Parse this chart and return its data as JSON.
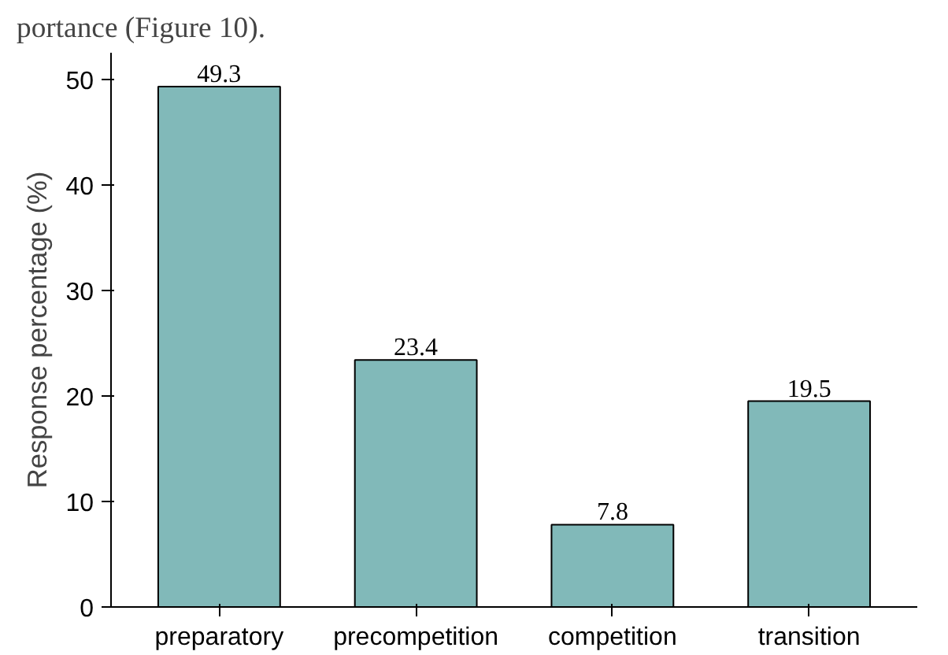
{
  "chart_data": {
    "type": "bar",
    "ylabel": "Response percentage (%)",
    "categories": [
      "preparatory",
      "precompetition",
      "competition",
      "transition"
    ],
    "values": [
      49.3,
      23.4,
      7.8,
      19.5
    ],
    "color": "#1a7f7f",
    "ylim": [
      0,
      52.5
    ],
    "yticks": [
      0,
      10,
      20,
      30,
      40,
      50
    ],
    "data_labels": true,
    "grid": false,
    "annotations": [
      "portance (Figure 10)."
    ]
  }
}
